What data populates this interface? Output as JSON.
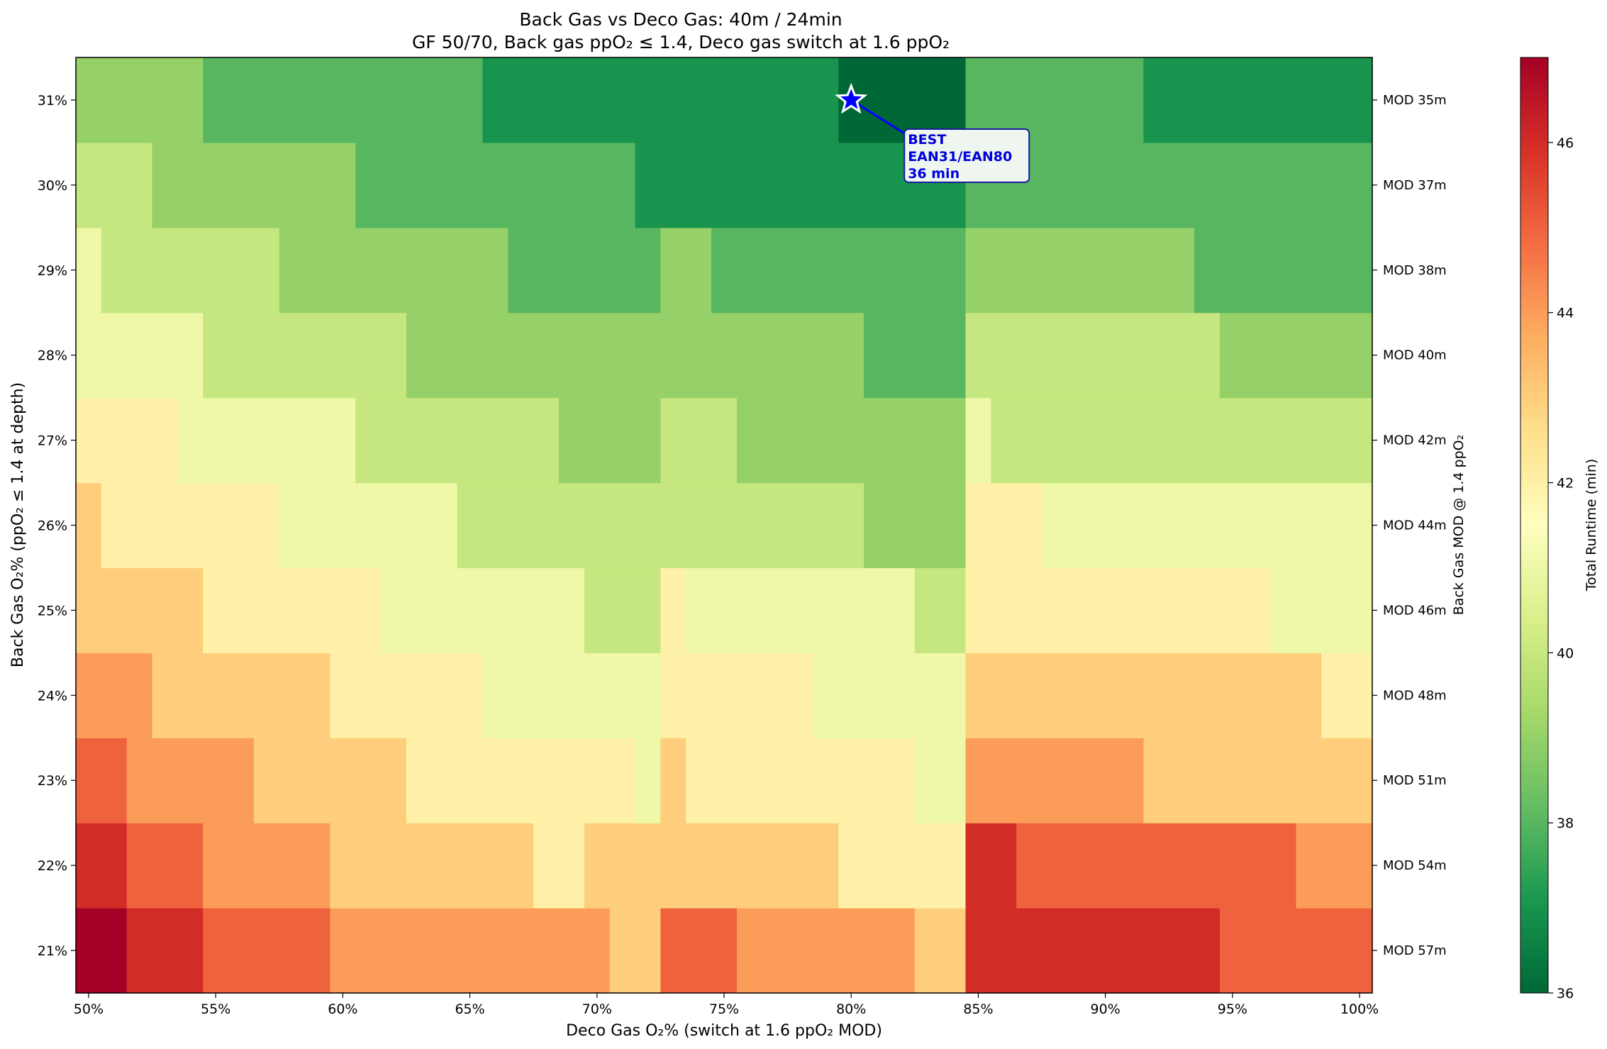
{
  "chart_data": {
    "type": "heatmap",
    "title": "Back Gas vs Deco Gas: 40m / 24min",
    "subtitle": "GF 50/70, Back gas ppO₂ ≤ 1.4, Deco gas switch at 1.6 ppO₂",
    "xlabel": "Deco Gas O₂% (switch at 1.6 ppO₂ MOD)",
    "ylabel": "Back Gas O₂% (ppO₂ ≤ 1.4 at depth)",
    "right_ylabel": "Back Gas MOD @ 1.4 ppO₂",
    "colorbar_label": "Total Runtime (min)",
    "colormap": "RdYlGn_r",
    "vmin": 36,
    "vmax": 47,
    "x_range": [
      50,
      100
    ],
    "x_values": [
      50,
      51,
      52,
      53,
      54,
      55,
      56,
      57,
      58,
      59,
      60,
      61,
      62,
      63,
      64,
      65,
      66,
      67,
      68,
      69,
      70,
      71,
      72,
      73,
      74,
      75,
      76,
      77,
      78,
      79,
      80,
      81,
      82,
      83,
      84,
      85,
      86,
      87,
      88,
      89,
      90,
      91,
      92,
      93,
      94,
      95,
      96,
      97,
      98,
      99,
      100
    ],
    "x_ticks": [
      "50%",
      "55%",
      "60%",
      "65%",
      "70%",
      "75%",
      "80%",
      "85%",
      "90%",
      "95%",
      "100%"
    ],
    "x_tick_values": [
      50,
      55,
      60,
      65,
      70,
      75,
      80,
      85,
      90,
      95,
      100
    ],
    "y_values": [
      21,
      22,
      23,
      24,
      25,
      26,
      27,
      28,
      29,
      30,
      31
    ],
    "y_ticks": [
      "21%",
      "22%",
      "23%",
      "24%",
      "25%",
      "26%",
      "27%",
      "28%",
      "29%",
      "30%",
      "31%"
    ],
    "right_ticks": [
      "MOD 57m",
      "MOD 54m",
      "MOD 51m",
      "MOD 48m",
      "MOD 46m",
      "MOD 44m",
      "MOD 42m",
      "MOD 40m",
      "MOD 38m",
      "MOD 37m",
      "MOD 35m"
    ],
    "colorbar_ticks": [
      36,
      38,
      40,
      42,
      44,
      46
    ],
    "runs": [
      [
        [
          50,
          51,
          47
        ],
        [
          52,
          54,
          46
        ],
        [
          55,
          59,
          45
        ],
        [
          60,
          70,
          44
        ],
        [
          71,
          72,
          43
        ],
        [
          73,
          75,
          45
        ],
        [
          76,
          82,
          44
        ],
        [
          83,
          84,
          43
        ],
        [
          85,
          94,
          46
        ],
        [
          95,
          100,
          45
        ]
      ],
      [
        [
          50,
          51,
          46
        ],
        [
          52,
          54,
          45
        ],
        [
          55,
          59,
          44
        ],
        [
          60,
          67,
          43
        ],
        [
          68,
          69,
          42
        ],
        [
          70,
          79,
          43
        ],
        [
          80,
          84,
          42
        ],
        [
          85,
          86,
          46
        ],
        [
          87,
          97,
          45
        ],
        [
          98,
          100,
          44
        ]
      ],
      [
        [
          50,
          51,
          45
        ],
        [
          52,
          56,
          44
        ],
        [
          57,
          62,
          43
        ],
        [
          63,
          71,
          42
        ],
        [
          72,
          72,
          41
        ],
        [
          73,
          73,
          43
        ],
        [
          74,
          82,
          42
        ],
        [
          83,
          84,
          41
        ],
        [
          85,
          91,
          44
        ],
        [
          92,
          100,
          43
        ]
      ],
      [
        [
          50,
          52,
          44
        ],
        [
          53,
          59,
          43
        ],
        [
          60,
          65,
          42
        ],
        [
          66,
          72,
          41
        ],
        [
          73,
          78,
          42
        ],
        [
          79,
          84,
          41
        ],
        [
          85,
          98,
          43
        ],
        [
          99,
          100,
          42
        ]
      ],
      [
        [
          50,
          54,
          43
        ],
        [
          55,
          61,
          42
        ],
        [
          62,
          69,
          41
        ],
        [
          70,
          72,
          40
        ],
        [
          73,
          73,
          42
        ],
        [
          74,
          82,
          41
        ],
        [
          83,
          84,
          40
        ],
        [
          85,
          96,
          42
        ],
        [
          97,
          100,
          41
        ]
      ],
      [
        [
          50,
          50,
          43
        ],
        [
          51,
          57,
          42
        ],
        [
          58,
          64,
          41
        ],
        [
          65,
          80,
          40
        ],
        [
          81,
          84,
          39
        ],
        [
          85,
          87,
          42
        ],
        [
          88,
          100,
          41
        ]
      ],
      [
        [
          50,
          53,
          42
        ],
        [
          54,
          60,
          41
        ],
        [
          61,
          68,
          40
        ],
        [
          69,
          72,
          39
        ],
        [
          73,
          75,
          40
        ],
        [
          76,
          84,
          39
        ],
        [
          85,
          85,
          41
        ],
        [
          86,
          100,
          40
        ]
      ],
      [
        [
          50,
          54,
          41
        ],
        [
          55,
          62,
          40
        ],
        [
          63,
          80,
          39
        ],
        [
          81,
          84,
          38
        ],
        [
          85,
          94,
          40
        ],
        [
          95,
          100,
          39
        ]
      ],
      [
        [
          50,
          50,
          41
        ],
        [
          51,
          57,
          40
        ],
        [
          58,
          66,
          39
        ],
        [
          67,
          72,
          38
        ],
        [
          73,
          74,
          39
        ],
        [
          75,
          84,
          38
        ],
        [
          85,
          93,
          39
        ],
        [
          94,
          100,
          38
        ]
      ],
      [
        [
          50,
          52,
          40
        ],
        [
          53,
          60,
          39
        ],
        [
          61,
          71,
          38
        ],
        [
          72,
          84,
          37
        ],
        [
          85,
          100,
          38
        ]
      ],
      [
        [
          50,
          54,
          39
        ],
        [
          55,
          65,
          38
        ],
        [
          66,
          79,
          37
        ],
        [
          80,
          84,
          36
        ],
        [
          85,
          91,
          38
        ],
        [
          92,
          100,
          37
        ]
      ]
    ],
    "best": {
      "x": 80,
      "y": 31,
      "label_lines": [
        "BEST",
        "EAN31/EAN80",
        "36 min"
      ]
    }
  },
  "colors": {
    "best_marker": "#0000ff",
    "annotation_text": "#0000dd",
    "annotation_border": "#1a1aa0",
    "annotation_fill": "#eef6ef"
  }
}
